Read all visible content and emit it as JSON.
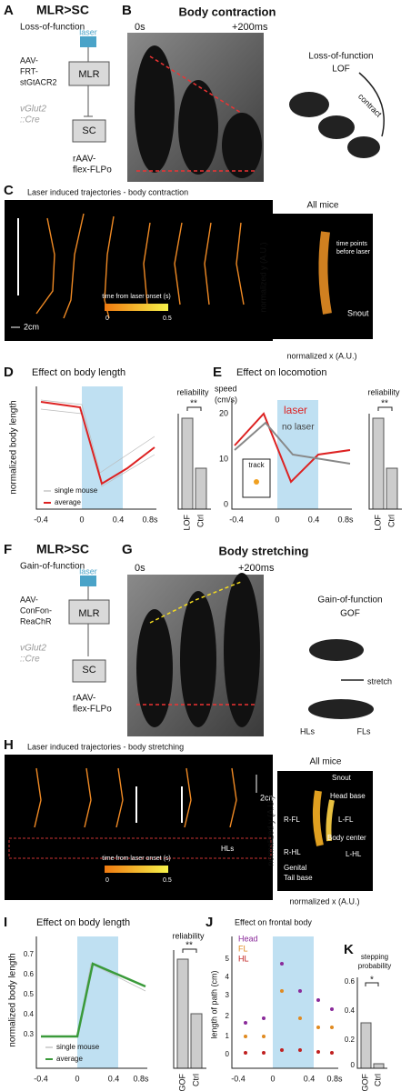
{
  "panel_a": {
    "letter": "A",
    "title": "MLR>SC",
    "subtitle": "Loss-of-function",
    "laser": "laser",
    "virus": [
      "AAV-",
      "FRT-",
      "stGtACR2"
    ],
    "mlr": "MLR",
    "cre": [
      "vGlut2",
      "::Cre"
    ],
    "sc": "SC",
    "retro": [
      "rAAV-",
      "flex-FLPo"
    ]
  },
  "panel_b": {
    "letter": "B",
    "title": "Body contraction",
    "time_start": "0s",
    "time_end": "+200ms",
    "schematic_title": "Loss-of-function",
    "schematic_abbr": "LOF",
    "arrow_label": "contract"
  },
  "panel_c": {
    "letter": "C",
    "title": "Laser induced trajectories - body contraction",
    "scale": "2cm",
    "colorbar_label": "time from laser onset (s)",
    "colorbar_ticks": [
      "0",
      "0.5"
    ],
    "inset_title": "All mice",
    "inset_note": [
      "time points",
      "before laser"
    ],
    "inset_point": "Snout",
    "y_label": "normalized y (A.U.)",
    "x_label": "normalized x (A.U.)"
  },
  "panel_d": {
    "letter": "D",
    "title": "Effect on body length",
    "y_label": "normalized body length",
    "x_ticks": [
      "-0.4",
      "0",
      "0.4",
      "0.8s"
    ],
    "legend": [
      "single mouse",
      "average"
    ],
    "reliability": "reliability",
    "significance": "**",
    "groups": [
      "LOF",
      "Ctrl"
    ]
  },
  "panel_e": {
    "letter": "E",
    "title": "Effect on locomotion",
    "y_label": [
      "speed",
      "(cm/s)"
    ],
    "y_ticks": [
      "20",
      "10",
      "0"
    ],
    "laser": "laser",
    "no_laser": "no laser",
    "track": "track",
    "x_ticks": [
      "-0.4",
      "0",
      "0.4",
      "0.8s"
    ],
    "reliability": "reliability",
    "significance": "**",
    "groups": [
      "LOF",
      "Ctrl"
    ]
  },
  "panel_f": {
    "letter": "F",
    "title": "MLR>SC",
    "subtitle": "Gain-of-function",
    "laser": "laser",
    "virus": [
      "AAV-",
      "ConFon-",
      "ReaChR"
    ],
    "mlr": "MLR",
    "cre": [
      "vGlut2",
      "::Cre"
    ],
    "sc": "SC",
    "retro": [
      "rAAV-",
      "flex-FLPo"
    ]
  },
  "panel_g": {
    "letter": "G",
    "title": "Body stretching",
    "time_start": "0s",
    "time_end": "+200ms",
    "schematic_title": "Gain-of-function",
    "schematic_abbr": "GOF",
    "arrow_label": "stretch",
    "hl": "HLs",
    "fl": "FLs"
  },
  "panel_h": {
    "letter": "H",
    "title": "Laser induced trajectories - body stretching",
    "scale": "2cm",
    "hl": "HLs",
    "colorbar_label": "time from laser onset (s)",
    "colorbar_ticks": [
      "0",
      "0.5"
    ],
    "inset_title": "All mice",
    "inset_points": [
      "Snout",
      "Head base",
      "R-FL",
      "L-FL",
      "Body center",
      "R-HL",
      "L-HL",
      "Genital",
      "Tail base"
    ],
    "y_label": "normalized y (A.U.)",
    "x_label": "normalized x (A.U.)"
  },
  "panel_i": {
    "letter": "I",
    "title": "Effect on body length",
    "y_label": "normalized body length",
    "y_ticks": [
      "0.7",
      "0.6",
      "0.5",
      "0.4",
      "0.3"
    ],
    "x_ticks": [
      "-0.4",
      "0",
      "0.4",
      "0.8s"
    ],
    "legend": [
      "single mouse",
      "average"
    ],
    "reliability": "reliability",
    "significance": "**",
    "groups": [
      "GOF",
      "Ctrl"
    ]
  },
  "panel_j": {
    "letter": "J",
    "title": "Effect on frontal body",
    "legend": [
      "Head",
      "FL",
      "HL"
    ],
    "y_label": "length of path (cm)",
    "y_ticks": [
      "5",
      "4",
      "3",
      "2",
      "1",
      "0"
    ],
    "x_ticks": [
      "-0.4",
      "0",
      "0.4",
      "0.8s"
    ]
  },
  "panel_k": {
    "letter": "K",
    "title": [
      "stepping",
      "probability"
    ],
    "y_ticks": [
      "0.6",
      "0.4",
      "0.2",
      "0"
    ],
    "significance": "*",
    "groups": [
      "GOF",
      "Ctrl"
    ]
  }
}
